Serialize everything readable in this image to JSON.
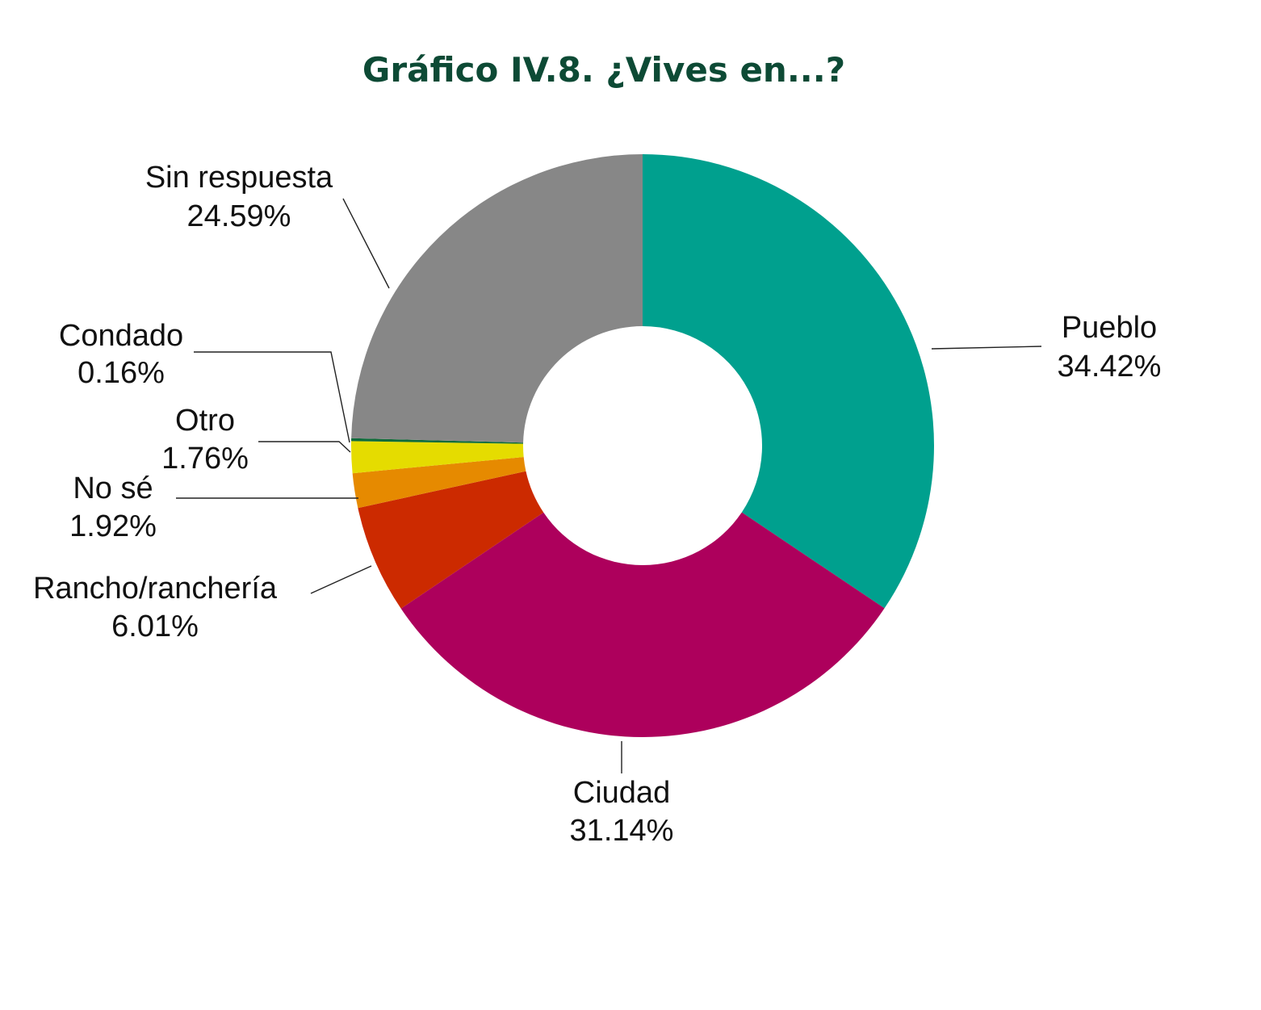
{
  "chart_data": {
    "type": "pie",
    "donut": true,
    "title": "Gráfico IV.8. ¿Vives en...?",
    "slices": [
      {
        "name": "Pueblo",
        "value": 34.42,
        "display_value": "34.42%",
        "color": "#00a08e"
      },
      {
        "name": "Ciudad",
        "value": 31.14,
        "display_value": "31.14%",
        "color": "#ad005c"
      },
      {
        "name": "Rancho/ranchería",
        "value": 6.01,
        "display_value": "6.01%",
        "color": "#cc2a00"
      },
      {
        "name": "No sé",
        "value": 1.92,
        "display_value": "1.92%",
        "color": "#e68a00"
      },
      {
        "name": "Otro",
        "value": 1.76,
        "display_value": "1.76%",
        "color": "#e5dc00"
      },
      {
        "name": "Condado",
        "value": 0.16,
        "display_value": "0.16%",
        "color": "#0d6b3a"
      },
      {
        "name": "Sin respuesta",
        "value": 24.59,
        "display_value": "24.59%",
        "color": "#878787"
      }
    ],
    "legend": "none"
  }
}
